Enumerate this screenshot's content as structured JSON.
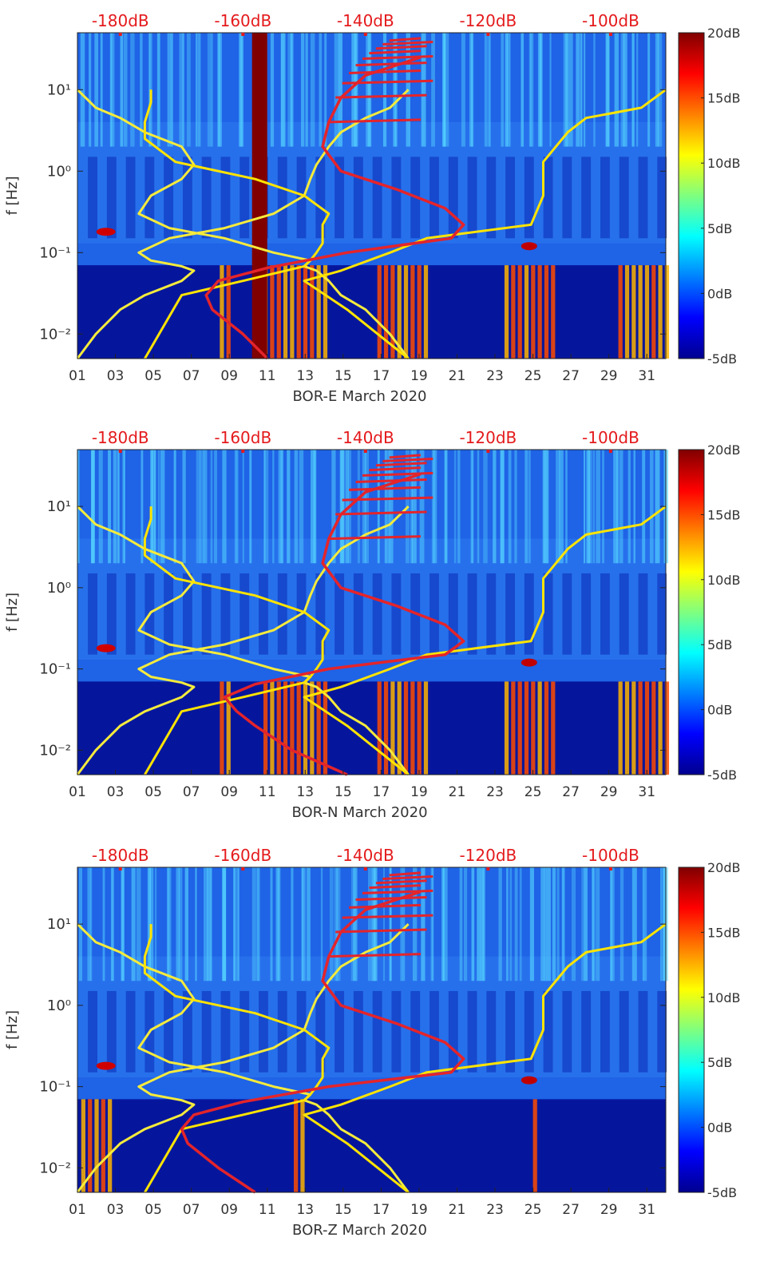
{
  "chart_data": [
    {
      "type": "heatmap",
      "title": "",
      "xlabel": "BOR-E March 2020",
      "ylabel": "f [Hz]",
      "x_ticks": [
        "01",
        "03",
        "05",
        "07",
        "09",
        "11",
        "13",
        "15",
        "17",
        "19",
        "21",
        "23",
        "25",
        "27",
        "29",
        "31"
      ],
      "x_range_days": [
        1,
        32
      ],
      "y_scale": "log",
      "y_range_hz": [
        0.005,
        50
      ],
      "y_ticks": [
        {
          "label": "10⁻²",
          "value": 0.01
        },
        {
          "label": "10⁻¹",
          "value": 0.1
        },
        {
          "label": "10⁰",
          "value": 1
        },
        {
          "label": "10¹",
          "value": 10
        }
      ],
      "top_axis_labels": [
        "-180dB",
        "-160dB",
        "-140dB",
        "-120dB",
        "-100dB"
      ],
      "top_axis_range_db": [
        -187,
        -91
      ],
      "colorbar": {
        "min": -5,
        "max": 20,
        "tick_labels": [
          "20dB",
          "15dB",
          "10dB",
          "5dB",
          "0dB",
          "-5dB"
        ],
        "colormap": "jet"
      },
      "band_note": "data gap (saturated) around day 10.2-11.0",
      "series": [
        {
          "color": "#f5eb3c",
          "x_db": [
            -187,
            -184,
            -180,
            -176,
            -170,
            -168,
            -170,
            -175,
            -177,
            -172,
            -163,
            -155,
            -150,
            -149,
            -148,
            -146,
            -144,
            -140,
            -136,
            -133
          ],
          "y_hz": [
            0.005,
            0.01,
            0.02,
            0.03,
            0.045,
            0.06,
            0.068,
            0.08,
            0.1,
            0.15,
            0.2,
            0.3,
            0.5,
            0.8,
            1.2,
            2,
            3,
            4.5,
            6,
            10
          ]
        },
        {
          "color": "#f5eb3c",
          "x_db": [
            -133,
            -136,
            -140,
            -144,
            -146,
            -148,
            -150,
            -149,
            -155,
            -163,
            -172,
            -177,
            -175,
            -170,
            -168,
            -170,
            -176,
            -180,
            -184,
            -187
          ],
          "y_hz": [
            0.005,
            0.01,
            0.02,
            0.03,
            0.045,
            0.06,
            0.068,
            0.08,
            0.1,
            0.15,
            0.2,
            0.3,
            0.5,
            0.8,
            1.2,
            2,
            3,
            4.5,
            6,
            10
          ]
        },
        {
          "color": "#ffe400",
          "x_db": [
            -176,
            -170,
            -160,
            -153,
            -150,
            -149,
            -148,
            -147,
            -147,
            -146,
            -150,
            -158,
            -171,
            -176,
            -176,
            -175,
            -175
          ],
          "y_hz": [
            0.005,
            0.03,
            0.045,
            0.06,
            0.068,
            0.08,
            0.1,
            0.13,
            0.22,
            0.3,
            0.5,
            0.8,
            1.3,
            2.5,
            4,
            7,
            10
          ]
        },
        {
          "color": "#ffe400",
          "x_db": [
            -133,
            -143,
            -150,
            -144,
            -136,
            -130,
            -113,
            -111,
            -111,
            -107,
            -104,
            -95,
            -91
          ],
          "y_hz": [
            0.005,
            0.02,
            0.045,
            0.06,
            0.1,
            0.15,
            0.22,
            0.5,
            1.3,
            3,
            4.5,
            6,
            10
          ]
        },
        {
          "color": "#e4242b",
          "x_db": [
            -156,
            -160,
            -165,
            -166,
            -164,
            -156,
            -143,
            -126,
            -124,
            -127,
            -135,
            -144,
            -147,
            -146,
            -144,
            -140,
            -131
          ],
          "y_hz": [
            0.005,
            0.01,
            0.02,
            0.03,
            0.045,
            0.065,
            0.1,
            0.15,
            0.22,
            0.35,
            0.6,
            1,
            2,
            4,
            8,
            15,
            25
          ]
        }
      ]
    },
    {
      "type": "heatmap",
      "title": "",
      "xlabel": "BOR-N March 2020",
      "ylabel": "f [Hz]",
      "x_ticks": [
        "01",
        "03",
        "05",
        "07",
        "09",
        "11",
        "13",
        "15",
        "17",
        "19",
        "21",
        "23",
        "25",
        "27",
        "29",
        "31"
      ],
      "x_range_days": [
        1,
        32
      ],
      "y_scale": "log",
      "y_range_hz": [
        0.005,
        50
      ],
      "y_ticks": [
        {
          "label": "10⁻²",
          "value": 0.01
        },
        {
          "label": "10⁻¹",
          "value": 0.1
        },
        {
          "label": "10⁰",
          "value": 1
        },
        {
          "label": "10¹",
          "value": 10
        }
      ],
      "top_axis_labels": [
        "-180dB",
        "-160dB",
        "-140dB",
        "-120dB",
        "-100dB"
      ],
      "top_axis_range_db": [
        -187,
        -91
      ],
      "colorbar": {
        "min": -5,
        "max": 20,
        "tick_labels": [
          "20dB",
          "15dB",
          "10dB",
          "5dB",
          "0dB",
          "-5dB"
        ],
        "colormap": "jet"
      },
      "series": [
        {
          "color": "#f5eb3c",
          "x_db": [
            -187,
            -184,
            -180,
            -176,
            -170,
            -168,
            -170,
            -175,
            -177,
            -172,
            -163,
            -155,
            -150,
            -149,
            -148,
            -146,
            -144,
            -140,
            -136,
            -133
          ],
          "y_hz": [
            0.005,
            0.01,
            0.02,
            0.03,
            0.045,
            0.06,
            0.068,
            0.08,
            0.1,
            0.15,
            0.2,
            0.3,
            0.5,
            0.8,
            1.2,
            2,
            3,
            4.5,
            6,
            10
          ]
        },
        {
          "color": "#f5eb3c",
          "x_db": [
            -133,
            -136,
            -140,
            -144,
            -146,
            -148,
            -150,
            -149,
            -155,
            -163,
            -172,
            -177,
            -175,
            -170,
            -168,
            -170,
            -176,
            -180,
            -184,
            -187
          ],
          "y_hz": [
            0.005,
            0.01,
            0.02,
            0.03,
            0.045,
            0.06,
            0.068,
            0.08,
            0.1,
            0.15,
            0.2,
            0.3,
            0.5,
            0.8,
            1.2,
            2,
            3,
            4.5,
            6,
            10
          ]
        },
        {
          "color": "#ffe400",
          "x_db": [
            -176,
            -170,
            -160,
            -153,
            -150,
            -149,
            -148,
            -147,
            -147,
            -146,
            -150,
            -158,
            -171,
            -176,
            -176,
            -175,
            -175
          ],
          "y_hz": [
            0.005,
            0.03,
            0.045,
            0.06,
            0.068,
            0.08,
            0.1,
            0.13,
            0.22,
            0.3,
            0.5,
            0.8,
            1.3,
            2.5,
            4,
            7,
            10
          ]
        },
        {
          "color": "#ffe400",
          "x_db": [
            -133,
            -143,
            -150,
            -144,
            -136,
            -130,
            -113,
            -111,
            -111,
            -107,
            -104,
            -95,
            -91
          ],
          "y_hz": [
            0.005,
            0.02,
            0.045,
            0.06,
            0.1,
            0.15,
            0.22,
            0.5,
            1.3,
            3,
            4.5,
            6,
            10
          ]
        },
        {
          "color": "#e4242b",
          "x_db": [
            -143,
            -152,
            -158,
            -161,
            -163,
            -158,
            -146,
            -127,
            -124,
            -127,
            -135,
            -144,
            -147,
            -146,
            -144,
            -140,
            -131
          ],
          "y_hz": [
            0.005,
            0.01,
            0.02,
            0.03,
            0.045,
            0.065,
            0.1,
            0.15,
            0.22,
            0.35,
            0.6,
            1,
            2,
            4,
            8,
            15,
            25
          ]
        }
      ]
    },
    {
      "type": "heatmap",
      "title": "",
      "xlabel": "BOR-Z March 2020",
      "ylabel": "f [Hz]",
      "x_ticks": [
        "01",
        "03",
        "05",
        "07",
        "09",
        "11",
        "13",
        "15",
        "17",
        "19",
        "21",
        "23",
        "25",
        "27",
        "29",
        "31"
      ],
      "x_range_days": [
        1,
        32
      ],
      "y_scale": "log",
      "y_range_hz": [
        0.005,
        50
      ],
      "y_ticks": [
        {
          "label": "10⁻²",
          "value": 0.01
        },
        {
          "label": "10⁻¹",
          "value": 0.1
        },
        {
          "label": "10⁰",
          "value": 1
        },
        {
          "label": "10¹",
          "value": 10
        }
      ],
      "top_axis_labels": [
        "-180dB",
        "-160dB",
        "-140dB",
        "-120dB",
        "-100dB"
      ],
      "top_axis_range_db": [
        -187,
        -91
      ],
      "colorbar": {
        "min": -5,
        "max": 20,
        "tick_labels": [
          "20dB",
          "15dB",
          "10dB",
          "5dB",
          "0dB",
          "-5dB"
        ],
        "colormap": "jet"
      },
      "series": [
        {
          "color": "#f5eb3c",
          "x_db": [
            -187,
            -184,
            -180,
            -176,
            -170,
            -168,
            -170,
            -175,
            -177,
            -172,
            -163,
            -155,
            -150,
            -149,
            -148,
            -146,
            -144,
            -140,
            -136,
            -133
          ],
          "y_hz": [
            0.005,
            0.01,
            0.02,
            0.03,
            0.045,
            0.06,
            0.068,
            0.08,
            0.1,
            0.15,
            0.2,
            0.3,
            0.5,
            0.8,
            1.2,
            2,
            3,
            4.5,
            6,
            10
          ]
        },
        {
          "color": "#f5eb3c",
          "x_db": [
            -133,
            -136,
            -140,
            -144,
            -146,
            -148,
            -150,
            -149,
            -155,
            -163,
            -172,
            -177,
            -175,
            -170,
            -168,
            -170,
            -176,
            -180,
            -184,
            -187
          ],
          "y_hz": [
            0.005,
            0.01,
            0.02,
            0.03,
            0.045,
            0.06,
            0.068,
            0.08,
            0.1,
            0.15,
            0.2,
            0.3,
            0.5,
            0.8,
            1.2,
            2,
            3,
            4.5,
            6,
            10
          ]
        },
        {
          "color": "#ffe400",
          "x_db": [
            -176,
            -170,
            -160,
            -153,
            -150,
            -149,
            -148,
            -147,
            -147,
            -146,
            -150,
            -158,
            -171,
            -176,
            -176,
            -175,
            -175
          ],
          "y_hz": [
            0.005,
            0.03,
            0.045,
            0.06,
            0.068,
            0.08,
            0.1,
            0.13,
            0.22,
            0.3,
            0.5,
            0.8,
            1.3,
            2.5,
            4,
            7,
            10
          ]
        },
        {
          "color": "#ffe400",
          "x_db": [
            -133,
            -143,
            -150,
            -144,
            -136,
            -130,
            -113,
            -111,
            -111,
            -107,
            -104,
            -95,
            -91
          ],
          "y_hz": [
            0.005,
            0.02,
            0.045,
            0.06,
            0.1,
            0.15,
            0.22,
            0.5,
            1.3,
            3,
            4.5,
            6,
            10
          ]
        },
        {
          "color": "#e4242b",
          "x_db": [
            -158,
            -164,
            -169,
            -170,
            -168,
            -160,
            -146,
            -126,
            -124,
            -127,
            -135,
            -144,
            -147,
            -146,
            -144,
            -140,
            -131
          ],
          "y_hz": [
            0.005,
            0.01,
            0.02,
            0.03,
            0.045,
            0.065,
            0.1,
            0.15,
            0.22,
            0.35,
            0.6,
            1,
            2,
            4,
            8,
            15,
            25
          ]
        }
      ]
    }
  ]
}
